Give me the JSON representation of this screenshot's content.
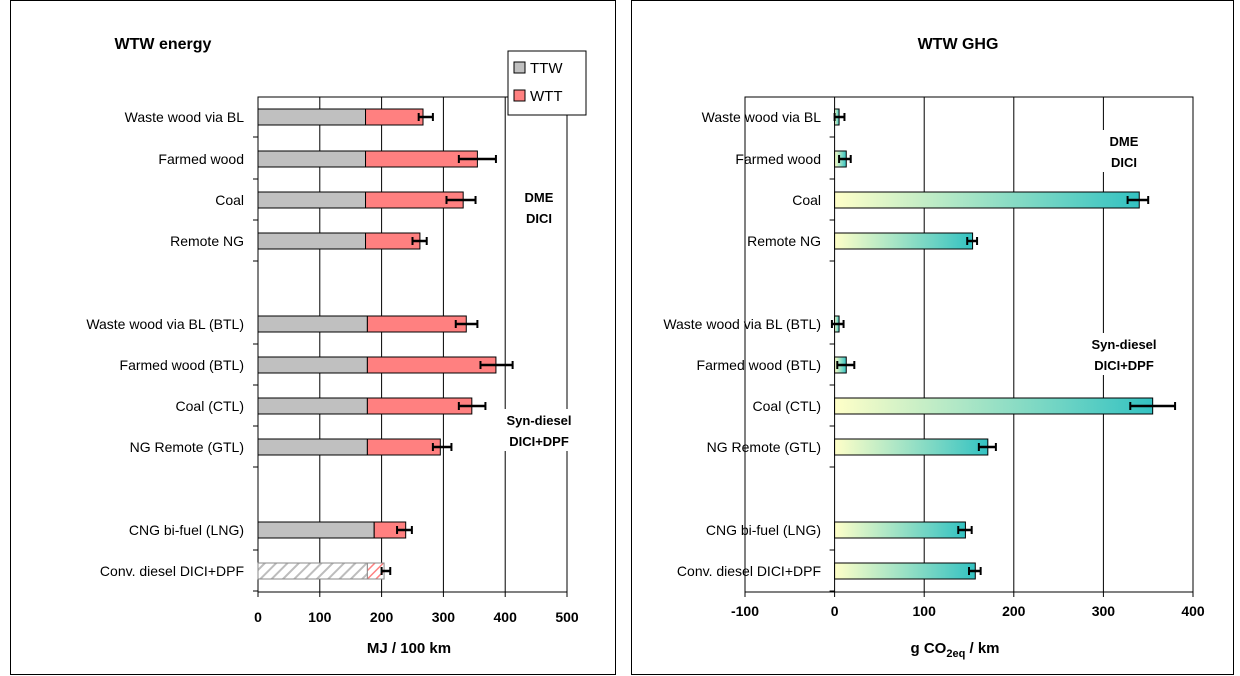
{
  "chart_data": [
    {
      "type": "bar",
      "orientation": "horizontal",
      "stacked": true,
      "title": "WTW energy",
      "xlabel": "MJ / 100 km",
      "ylabel": "",
      "xlim": [
        0,
        500
      ],
      "xticks": [
        "0",
        "100",
        "200",
        "300",
        "400",
        "500"
      ],
      "grid": true,
      "legend_position": "top-right",
      "legend": [
        {
          "label": "TTW",
          "color": "#c0c0c0"
        },
        {
          "label": "WTT",
          "color": "#ff8080"
        }
      ],
      "group_labels": [
        {
          "lines": [
            "DME",
            "DICI"
          ]
        },
        {
          "lines": [
            "Syn-diesel",
            "DICI+DPF"
          ]
        }
      ],
      "categories": [
        "Waste wood via BL",
        "Farmed wood",
        "Coal",
        "Remote NG",
        "Waste wood via BL (BTL)",
        "Farmed wood (BTL)",
        "Coal (CTL)",
        "NG Remote (GTL)",
        "CNG  bi-fuel (LNG)",
        "Conv. diesel DICI+DPF"
      ],
      "series": [
        {
          "name": "TTW",
          "color": "#c0c0c0",
          "values": [
            174,
            174,
            174,
            174,
            177,
            177,
            177,
            177,
            188,
            177
          ]
        },
        {
          "name": "WTT",
          "color": "#ff8080",
          "values": [
            93,
            181,
            158,
            88,
            160,
            208,
            169,
            118,
            51,
            27
          ]
        }
      ],
      "error_low": [
        260,
        325,
        305,
        250,
        320,
        360,
        325,
        283,
        225,
        200
      ],
      "error_high": [
        283,
        385,
        352,
        273,
        355,
        412,
        368,
        313,
        249,
        214
      ],
      "hatched": [
        false,
        false,
        false,
        false,
        false,
        false,
        false,
        false,
        false,
        true
      ]
    },
    {
      "type": "bar",
      "orientation": "horizontal",
      "title": "WTW GHG",
      "xlabel_main": "g CO",
      "xlabel_sub": "2eq",
      "xlabel_tail": " /  km",
      "ylabel": "",
      "xlim": [
        -100,
        400
      ],
      "xticks": [
        "-100",
        "0",
        "100",
        "200",
        "300",
        "400"
      ],
      "grid": true,
      "gradient": [
        "#ffffc8",
        "#33c2c2"
      ],
      "group_labels": [
        {
          "lines": [
            "DME",
            "DICI"
          ]
        },
        {
          "lines": [
            "Syn-diesel",
            "DICI+DPF"
          ]
        }
      ],
      "categories": [
        "Waste wood via BL",
        "Farmed wood",
        "Coal",
        "Remote NG",
        "Waste wood via BL (BTL)",
        "Farmed wood (BTL)",
        "Coal (CTL)",
        "NG Remote (GTL)",
        "CNG  bi-fuel (LNG)",
        "Conv. diesel DICI+DPF"
      ],
      "values": [
        5,
        13,
        340,
        154,
        5,
        13,
        355,
        171,
        146,
        157
      ],
      "error_low": [
        0,
        5,
        327,
        148,
        -3,
        3,
        330,
        161,
        138,
        150
      ],
      "error_high": [
        11,
        18,
        350,
        159,
        10,
        22,
        380,
        180,
        153,
        163
      ]
    }
  ]
}
